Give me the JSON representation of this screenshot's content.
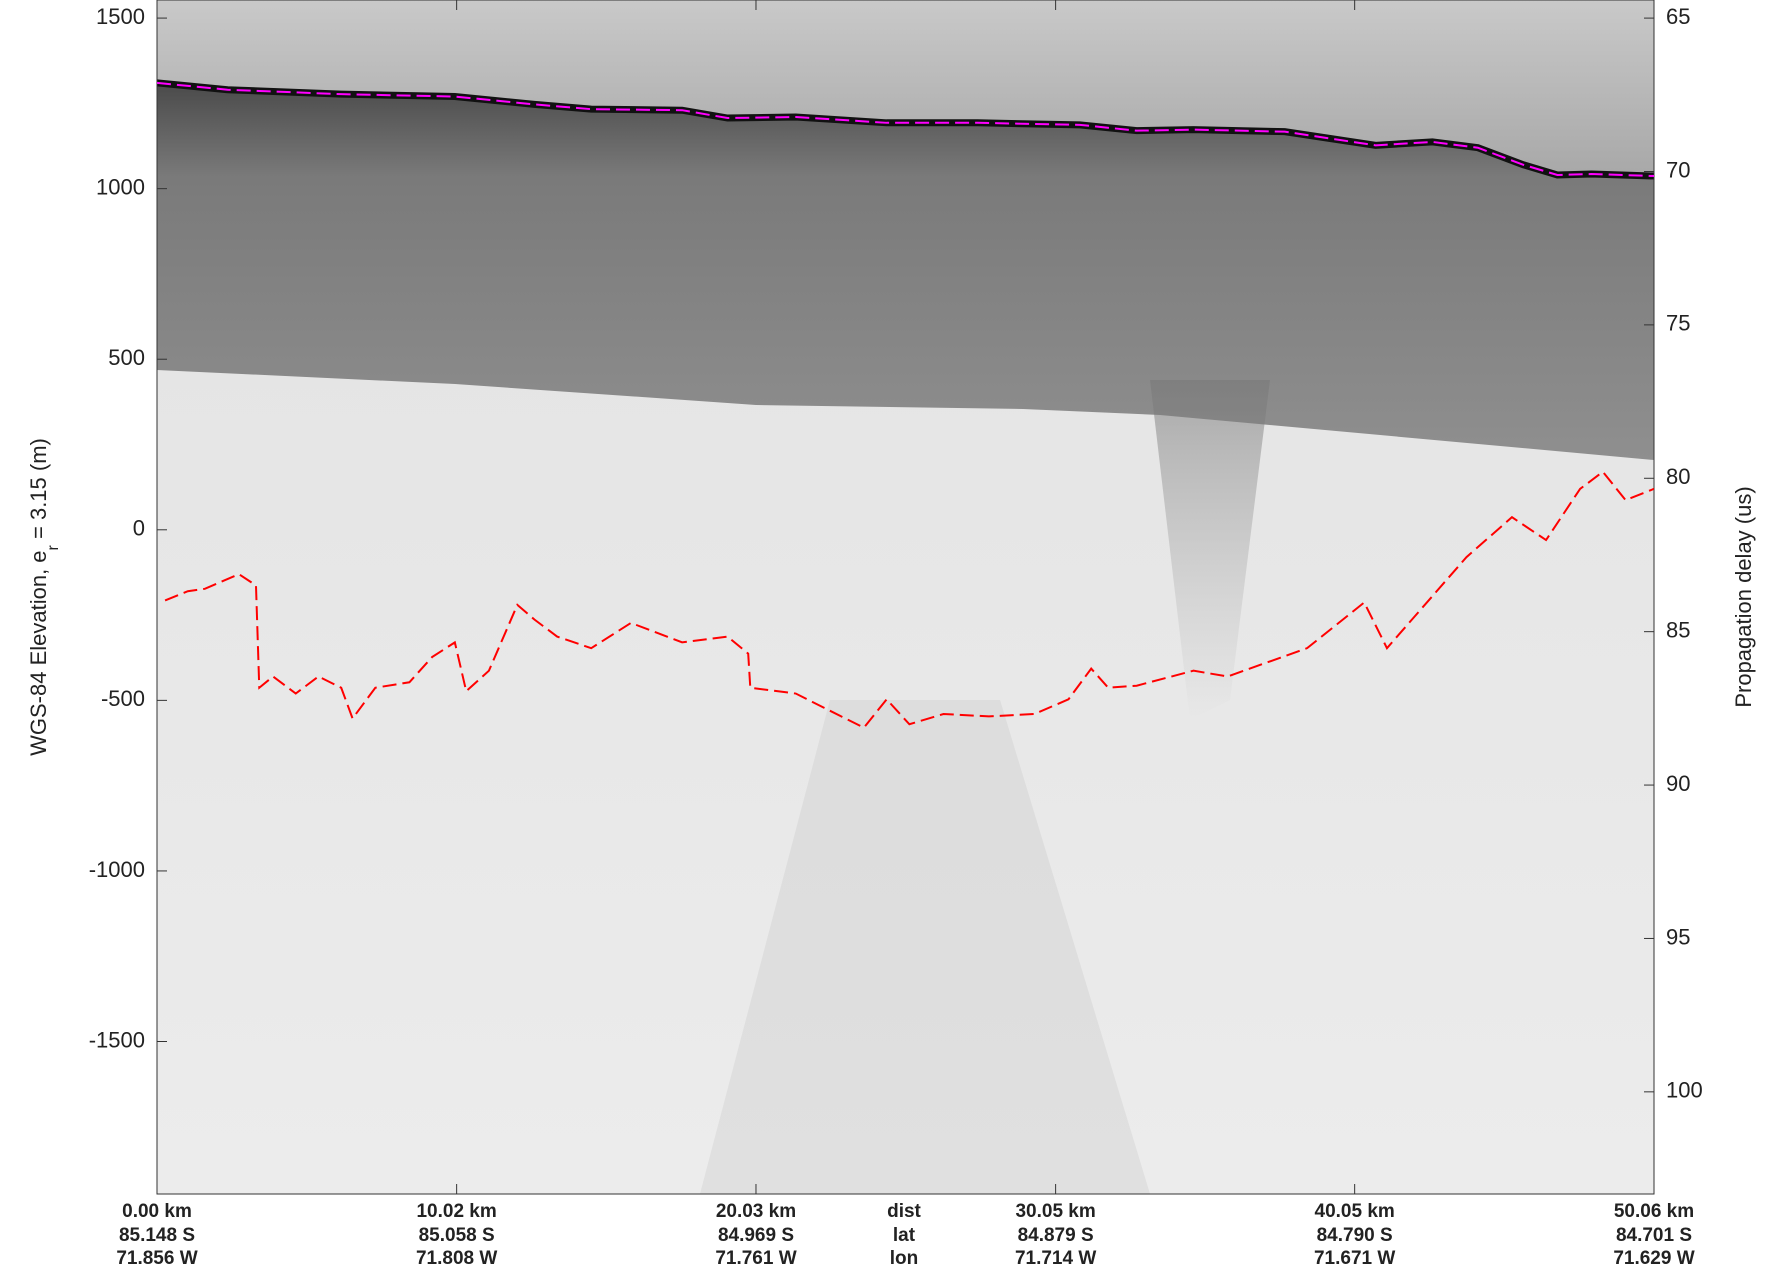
{
  "chart_data": {
    "type": "line",
    "ylabel": "WGS-84 Elevation, e",
    "ylabel_subscript": "r",
    "ylabel_suffix": " = 3.15 (m)",
    "y2label": "Propagation delay (us)",
    "xlim": [
      0,
      50.06
    ],
    "ylim": [
      -1947,
      1553
    ],
    "y2lim": [
      64.41,
      103.33
    ],
    "yticks": [
      -1500,
      -1000,
      -500,
      0,
      500,
      1000,
      1500
    ],
    "y2ticks": [
      65,
      70,
      75,
      80,
      85,
      90,
      95,
      100
    ],
    "xticks": [
      {
        "value": 0,
        "label": "0.00 km"
      },
      {
        "value": 10.02,
        "label": "10.02 km"
      },
      {
        "value": 20.03,
        "label": "20.03 km"
      },
      {
        "value": 30.05,
        "label": "30.05 km"
      },
      {
        "value": 40.05,
        "label": "40.05 km"
      },
      {
        "value": 50.06,
        "label": "50.06 km"
      }
    ],
    "lat": [
      "85.148 S",
      "85.058 S",
      "84.969 S",
      "84.879 S",
      "84.790 S",
      "84.701 S"
    ],
    "lon": [
      "71.856 W",
      "71.808 W",
      "71.761 W",
      "71.714 W",
      "71.671 W",
      "71.629 W"
    ],
    "row_labels": [
      "dist",
      "lat",
      "lon"
    ],
    "series": [
      {
        "color": "#ff00ff",
        "x": [
          0,
          2.36,
          6.16,
          9.96,
          12.62,
          14.52,
          17.56,
          19.08,
          21.36,
          24.4,
          27.44,
          30.86,
          32.76,
          34.66,
          37.71,
          39.23,
          40.75,
          42.65,
          44.17,
          45.69,
          46.83,
          47.97,
          50.06
        ],
        "values": [
          1310,
          1290,
          1277,
          1270,
          1247,
          1233,
          1230,
          1207,
          1210,
          1193,
          1193,
          1187,
          1170,
          1173,
          1167,
          1147,
          1127,
          1137,
          1120,
          1070,
          1040,
          1043,
          1037
        ]
      },
      {
        "color": "#ff0000",
        "x": [
          0.27,
          1.03,
          1.6,
          2.74,
          3.31,
          3.42,
          3.88,
          4.64,
          5.4,
          6.16,
          6.54,
          7.3,
          8.44,
          9.2,
          9.96,
          10.34,
          11.1,
          12.05,
          12.62,
          13.38,
          14.52,
          15.85,
          17.56,
          19.08,
          19.77,
          19.84,
          21.36,
          22.88,
          23.64,
          24.4,
          25.16,
          26.3,
          27.82,
          29.34,
          30.48,
          31.24,
          31.81,
          32.76,
          34.66,
          35.8,
          38.46,
          40.37,
          41.13,
          43.79,
          45.31,
          46.45,
          47.59,
          48.35,
          49.11,
          50.06
        ],
        "values": [
          -207,
          -180,
          -173,
          -130,
          -163,
          -463,
          -430,
          -480,
          -430,
          -463,
          -553,
          -463,
          -447,
          -373,
          -330,
          -473,
          -413,
          -220,
          -263,
          -313,
          -347,
          -273,
          -330,
          -313,
          -363,
          -463,
          -480,
          -547,
          -580,
          -497,
          -570,
          -540,
          -547,
          -540,
          -497,
          -407,
          -463,
          -457,
          -413,
          -430,
          -347,
          -213,
          -347,
          -80,
          37,
          -30,
          120,
          170,
          87,
          120
        ]
      }
    ]
  }
}
